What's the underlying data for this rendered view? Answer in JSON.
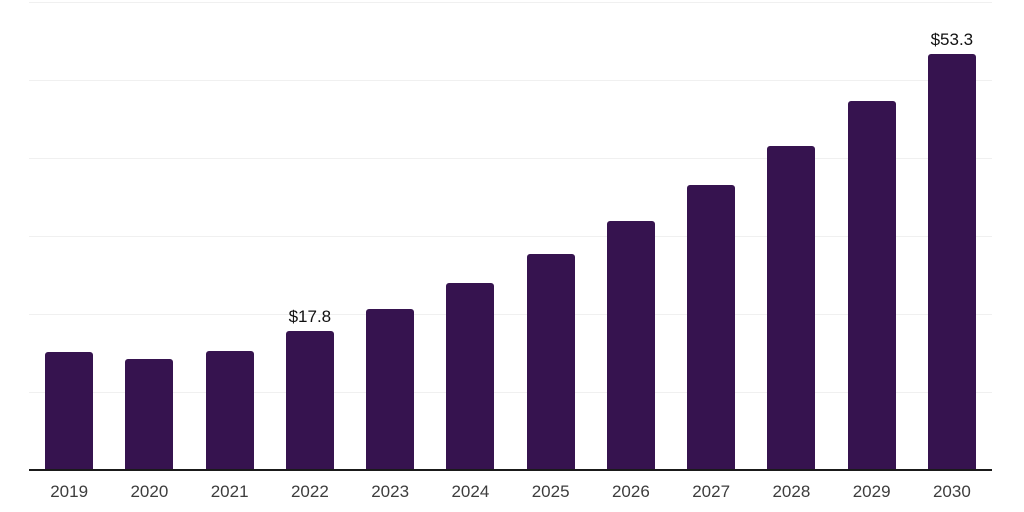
{
  "chart_data": {
    "type": "bar",
    "title": "",
    "xlabel": "",
    "ylabel": "",
    "categories": [
      "2019",
      "2020",
      "2021",
      "2022",
      "2023",
      "2024",
      "2025",
      "2026",
      "2027",
      "2028",
      "2029",
      "2030"
    ],
    "values": [
      15.1,
      14.2,
      15.2,
      17.8,
      20.7,
      24.0,
      27.7,
      31.9,
      36.5,
      41.6,
      47.3,
      53.3
    ],
    "data_labels": [
      "",
      "",
      "",
      "$17.8",
      "",
      "",
      "",
      "",
      "",
      "",
      "",
      "$53.3"
    ],
    "ylim": [
      0,
      60
    ],
    "gridline_step": 10,
    "grid": "horizontal-light",
    "legend": "none",
    "y_tick_labels_visible": false
  },
  "colors": {
    "background": "#FFFFFF",
    "bar": "#36134F",
    "axis_line": "#1A1A1A",
    "gridline": "#F0F0F0",
    "tick_label": "#3D3D3D",
    "data_label": "#111111"
  }
}
